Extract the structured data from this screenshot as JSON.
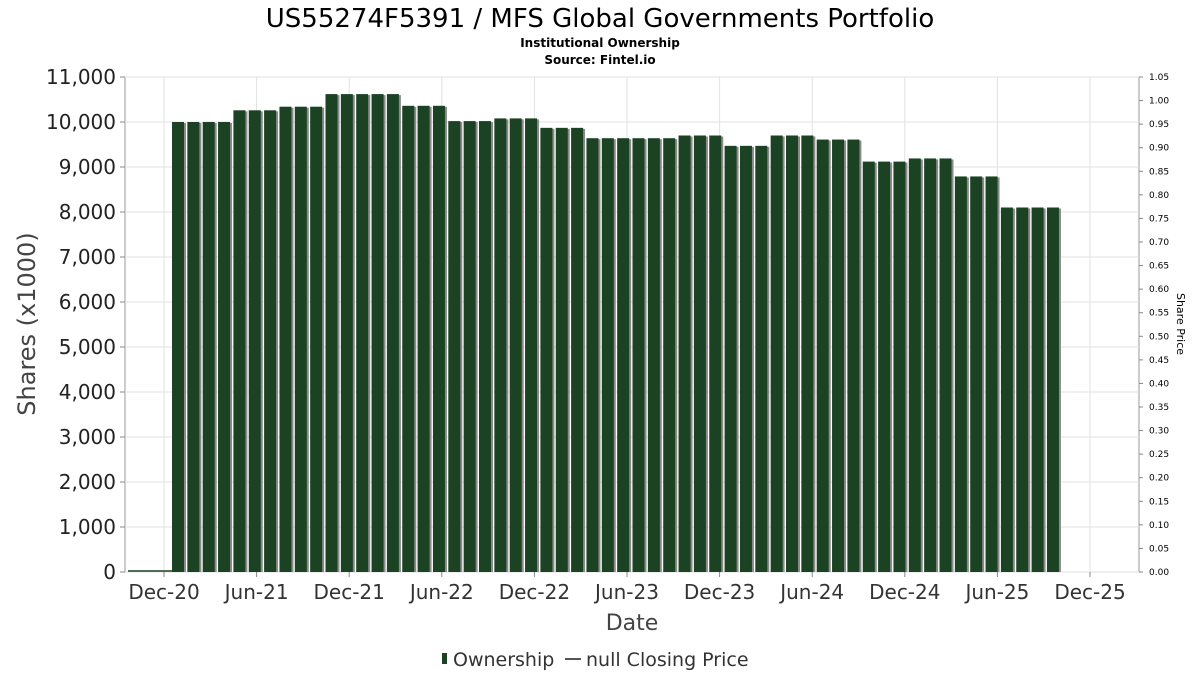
{
  "chart_data": {
    "type": "bar",
    "title": "US55274F5391 / MFS Global Governments Portfolio",
    "subtitle": "Institutional Ownership",
    "source": "Source: Fintel.io",
    "xlabel": "Date",
    "ylabel": "Shares (x1000)",
    "y2label": "Share Price",
    "ylim": [
      0,
      11000
    ],
    "y2lim": [
      0,
      1.05
    ],
    "y_ticks": [
      "0",
      "1,000",
      "2,000",
      "3,000",
      "4,000",
      "5,000",
      "6,000",
      "7,000",
      "8,000",
      "9,000",
      "10,000",
      "11,000"
    ],
    "y2_ticks": [
      "0.00",
      "0.05",
      "0.10",
      "0.15",
      "0.20",
      "0.25",
      "0.30",
      "0.35",
      "0.40",
      "0.45",
      "0.50",
      "0.55",
      "0.60",
      "0.65",
      "0.70",
      "0.75",
      "0.80",
      "0.85",
      "0.90",
      "0.95",
      "1.00",
      "1.05"
    ],
    "x_ticks": [
      "Dec-20",
      "Jun-21",
      "Dec-21",
      "Jun-22",
      "Dec-22",
      "Jun-23",
      "Dec-23",
      "Jun-24",
      "Dec-24",
      "Jun-25",
      "Dec-25"
    ],
    "grid": true,
    "legend_position": "bottom",
    "series": [
      {
        "name": "Ownership",
        "color": "#1a4223",
        "values": [
          10000,
          10000,
          10000,
          10000,
          10260,
          10260,
          10260,
          10340,
          10340,
          10340,
          10620,
          10620,
          10620,
          10620,
          10620,
          10360,
          10360,
          10360,
          10020,
          10020,
          10020,
          10080,
          10080,
          10080,
          9870,
          9870,
          9870,
          9640,
          9640,
          9640,
          9640,
          9640,
          9640,
          9700,
          9700,
          9700,
          9470,
          9470,
          9470,
          9700,
          9700,
          9700,
          9610,
          9610,
          9610,
          9120,
          9120,
          9120,
          9190,
          9190,
          9190,
          8790,
          8790,
          8790,
          8100,
          8100,
          8100,
          8100
        ]
      },
      {
        "name": "null Closing Price",
        "color": "#555555",
        "values": []
      }
    ]
  }
}
